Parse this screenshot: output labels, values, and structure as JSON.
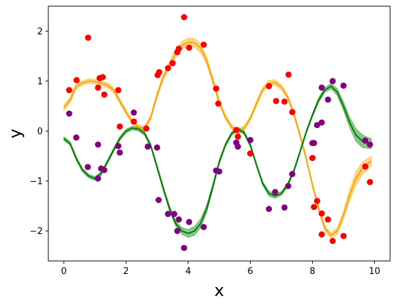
{
  "chart_data": {
    "type": "scatter",
    "xlabel": "x",
    "ylabel": "y",
    "xlim": [
      -0.5,
      10.5
    ],
    "ylim": [
      -2.6,
      2.5
    ],
    "xticks": [
      0,
      2,
      4,
      6,
      8,
      10
    ],
    "yticks": [
      -2,
      -1,
      0,
      1,
      2
    ],
    "grid": false,
    "series": [
      {
        "kind": "points",
        "color": "#ff0000",
        "points": [
          [
            0.17,
            0.82
          ],
          [
            0.41,
            1.02
          ],
          [
            0.78,
            1.87
          ],
          [
            1.1,
            0.87
          ],
          [
            1.15,
            1.06
          ],
          [
            1.25,
            1.08
          ],
          [
            1.3,
            0.73
          ],
          [
            1.75,
            0.82
          ],
          [
            1.8,
            0.09
          ],
          [
            2.25,
            0.19
          ],
          [
            2.65,
            0.05
          ],
          [
            3.02,
            1.12
          ],
          [
            3.07,
            1.18
          ],
          [
            3.35,
            1.26
          ],
          [
            3.5,
            1.36
          ],
          [
            3.65,
            1.58
          ],
          [
            3.7,
            1.65
          ],
          [
            3.87,
            2.28
          ],
          [
            4.03,
            1.67
          ],
          [
            4.5,
            1.73
          ],
          [
            4.9,
            0.85
          ],
          [
            4.97,
            0.55
          ],
          [
            5.55,
            0.02
          ],
          [
            5.6,
            -0.11
          ],
          [
            6.0,
            -0.45
          ],
          [
            6.6,
            0.9
          ],
          [
            6.83,
            0.6
          ],
          [
            7.1,
            0.59
          ],
          [
            7.23,
            1.13
          ],
          [
            7.35,
            0.38
          ],
          [
            8.0,
            -0.54
          ],
          [
            8.05,
            -1.52
          ],
          [
            8.15,
            -1.4
          ],
          [
            8.3,
            -2.07
          ],
          [
            8.3,
            -1.65
          ],
          [
            8.5,
            -1.77
          ],
          [
            8.65,
            -2.2
          ],
          [
            9.0,
            -2.1
          ],
          [
            9.7,
            -0.71
          ],
          [
            9.85,
            -1.02
          ]
        ]
      },
      {
        "kind": "points",
        "color": "#800080",
        "points": [
          [
            0.17,
            0.35
          ],
          [
            0.4,
            -0.13
          ],
          [
            0.77,
            -0.72
          ],
          [
            1.1,
            -0.27
          ],
          [
            1.1,
            -0.95
          ],
          [
            1.2,
            -0.75
          ],
          [
            1.3,
            -0.78
          ],
          [
            1.75,
            -0.3
          ],
          [
            1.8,
            -0.43
          ],
          [
            2.25,
            0.37
          ],
          [
            2.7,
            -0.31
          ],
          [
            3.0,
            -0.33
          ],
          [
            3.05,
            -1.38
          ],
          [
            3.35,
            -1.66
          ],
          [
            3.55,
            -1.66
          ],
          [
            3.65,
            -2.0
          ],
          [
            3.7,
            -1.77
          ],
          [
            3.87,
            -2.34
          ],
          [
            4.03,
            -1.82
          ],
          [
            4.5,
            -1.92
          ],
          [
            4.9,
            -0.79
          ],
          [
            5.0,
            -0.81
          ],
          [
            5.55,
            -0.23
          ],
          [
            5.6,
            -0.31
          ],
          [
            6.0,
            -0.18
          ],
          [
            6.6,
            -1.56
          ],
          [
            6.8,
            -1.22
          ],
          [
            7.1,
            -1.53
          ],
          [
            7.22,
            -1.1
          ],
          [
            7.35,
            -0.86
          ],
          [
            8.0,
            -0.24
          ],
          [
            8.05,
            -0.24
          ],
          [
            8.15,
            0.12
          ],
          [
            8.3,
            0.87
          ],
          [
            8.3,
            0.17
          ],
          [
            8.5,
            0.63
          ],
          [
            8.65,
            1.0
          ],
          [
            9.0,
            0.91
          ],
          [
            9.7,
            -0.19
          ],
          [
            9.85,
            -0.27
          ]
        ]
      },
      {
        "kind": "line",
        "color": "#ffa500",
        "band_color": "#ffa500",
        "points": [
          [
            0.0,
            0.47,
            0.06
          ],
          [
            0.2,
            0.62,
            0.06
          ],
          [
            0.4,
            0.9,
            0.06
          ],
          [
            0.6,
            0.96,
            0.05
          ],
          [
            0.8,
            1.0,
            0.05
          ],
          [
            1.0,
            0.99,
            0.05
          ],
          [
            1.2,
            0.96,
            0.05
          ],
          [
            1.4,
            0.92,
            0.05
          ],
          [
            1.6,
            0.82,
            0.05
          ],
          [
            1.8,
            0.6,
            0.05
          ],
          [
            2.0,
            0.38,
            0.05
          ],
          [
            2.2,
            0.19,
            0.05
          ],
          [
            2.4,
            0.08,
            0.05
          ],
          [
            2.6,
            0.05,
            0.05
          ],
          [
            2.8,
            0.28,
            0.05
          ],
          [
            3.0,
            0.72,
            0.06
          ],
          [
            3.2,
            1.08,
            0.06
          ],
          [
            3.4,
            1.33,
            0.07
          ],
          [
            3.6,
            1.55,
            0.08
          ],
          [
            3.8,
            1.72,
            0.08
          ],
          [
            4.0,
            1.78,
            0.08
          ],
          [
            4.2,
            1.77,
            0.09
          ],
          [
            4.4,
            1.66,
            0.09
          ],
          [
            4.6,
            1.4,
            0.08
          ],
          [
            4.8,
            1.0,
            0.07
          ],
          [
            5.0,
            0.58,
            0.06
          ],
          [
            5.2,
            0.28,
            0.05
          ],
          [
            5.4,
            0.08,
            0.05
          ],
          [
            5.6,
            -0.01,
            0.05
          ],
          [
            5.8,
            0.06,
            0.05
          ],
          [
            6.0,
            0.25,
            0.05
          ],
          [
            6.2,
            0.55,
            0.05
          ],
          [
            6.4,
            0.83,
            0.05
          ],
          [
            6.6,
            0.96,
            0.06
          ],
          [
            6.8,
            0.97,
            0.06
          ],
          [
            7.0,
            0.88,
            0.05
          ],
          [
            7.2,
            0.68,
            0.05
          ],
          [
            7.4,
            0.35,
            0.05
          ],
          [
            7.6,
            -0.08,
            0.05
          ],
          [
            7.8,
            -0.55,
            0.05
          ],
          [
            8.0,
            -1.08,
            0.05
          ],
          [
            8.2,
            -1.55,
            0.05
          ],
          [
            8.4,
            -1.95,
            0.06
          ],
          [
            8.6,
            -2.09,
            0.06
          ],
          [
            8.8,
            -2.0,
            0.07
          ],
          [
            9.0,
            -1.68,
            0.09
          ],
          [
            9.2,
            -1.28,
            0.12
          ],
          [
            9.4,
            -0.95,
            0.14
          ],
          [
            9.6,
            -0.75,
            0.13
          ],
          [
            9.8,
            -0.65,
            0.11
          ],
          [
            9.9,
            -0.6,
            0.1
          ]
        ]
      },
      {
        "kind": "line",
        "color": "#008000",
        "band_color": "#008000",
        "points": [
          [
            0.0,
            -0.15,
            0.04
          ],
          [
            0.2,
            -0.25,
            0.04
          ],
          [
            0.4,
            -0.55,
            0.04
          ],
          [
            0.6,
            -0.78,
            0.04
          ],
          [
            0.8,
            -0.9,
            0.04
          ],
          [
            1.0,
            -0.95,
            0.04
          ],
          [
            1.2,
            -0.85,
            0.04
          ],
          [
            1.4,
            -0.62,
            0.04
          ],
          [
            1.6,
            -0.38,
            0.04
          ],
          [
            1.8,
            -0.15,
            0.04
          ],
          [
            2.0,
            0.0,
            0.04
          ],
          [
            2.2,
            0.06,
            0.04
          ],
          [
            2.4,
            0.04,
            0.04
          ],
          [
            2.6,
            -0.05,
            0.04
          ],
          [
            2.8,
            -0.3,
            0.04
          ],
          [
            3.0,
            -0.72,
            0.05
          ],
          [
            3.2,
            -1.15,
            0.05
          ],
          [
            3.4,
            -1.55,
            0.06
          ],
          [
            3.6,
            -1.85,
            0.06
          ],
          [
            3.8,
            -2.0,
            0.07
          ],
          [
            4.0,
            -2.05,
            0.08
          ],
          [
            4.2,
            -2.0,
            0.09
          ],
          [
            4.4,
            -1.85,
            0.09
          ],
          [
            4.6,
            -1.55,
            0.08
          ],
          [
            4.8,
            -1.1,
            0.06
          ],
          [
            5.0,
            -0.62,
            0.05
          ],
          [
            5.2,
            -0.28,
            0.04
          ],
          [
            5.4,
            -0.05,
            0.04
          ],
          [
            5.6,
            0.04,
            0.04
          ],
          [
            5.8,
            -0.03,
            0.04
          ],
          [
            6.0,
            -0.28,
            0.04
          ],
          [
            6.2,
            -0.68,
            0.04
          ],
          [
            6.4,
            -1.05,
            0.04
          ],
          [
            6.6,
            -1.25,
            0.05
          ],
          [
            6.8,
            -1.3,
            0.05
          ],
          [
            7.0,
            -1.25,
            0.04
          ],
          [
            7.2,
            -1.08,
            0.04
          ],
          [
            7.4,
            -0.8,
            0.04
          ],
          [
            7.6,
            -0.42,
            0.04
          ],
          [
            7.8,
            -0.02,
            0.04
          ],
          [
            8.0,
            0.32,
            0.04
          ],
          [
            8.2,
            0.62,
            0.05
          ],
          [
            8.4,
            0.82,
            0.05
          ],
          [
            8.6,
            0.9,
            0.06
          ],
          [
            8.8,
            0.78,
            0.07
          ],
          [
            9.0,
            0.5,
            0.09
          ],
          [
            9.2,
            0.17,
            0.11
          ],
          [
            9.4,
            -0.08,
            0.13
          ],
          [
            9.6,
            -0.2,
            0.13
          ],
          [
            9.8,
            -0.24,
            0.11
          ],
          [
            9.9,
            -0.25,
            0.1
          ]
        ]
      }
    ]
  }
}
